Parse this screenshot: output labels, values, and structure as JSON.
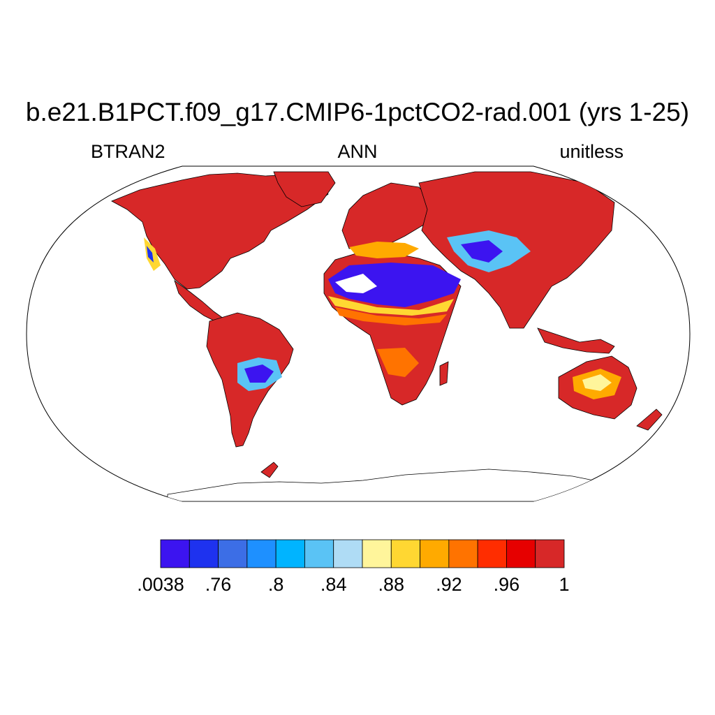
{
  "title": "b.e21.B1PCT.f09_g17.CMIP6-1pctCO2-rad.001 (yrs 1-25)",
  "subtitle_left": "BTRAN2",
  "subtitle_center": "ANN",
  "subtitle_right": "unitless",
  "colorbar": {
    "colors": [
      "#3c14f0",
      "#1e32ef",
      "#3c6ee6",
      "#1e90ff",
      "#00b4ff",
      "#5ac3f5",
      "#afdcf5",
      "#fff59b",
      "#ffd732",
      "#ffaa00",
      "#ff7300",
      "#ff2d00",
      "#e60000",
      "#d72828"
    ],
    "labels": [
      ".0038",
      ".76",
      ".8",
      ".84",
      ".88",
      ".92",
      ".96",
      "1"
    ]
  },
  "map": {
    "projection": "Robinson",
    "variable": "BTRAN2",
    "period": "ANN"
  }
}
